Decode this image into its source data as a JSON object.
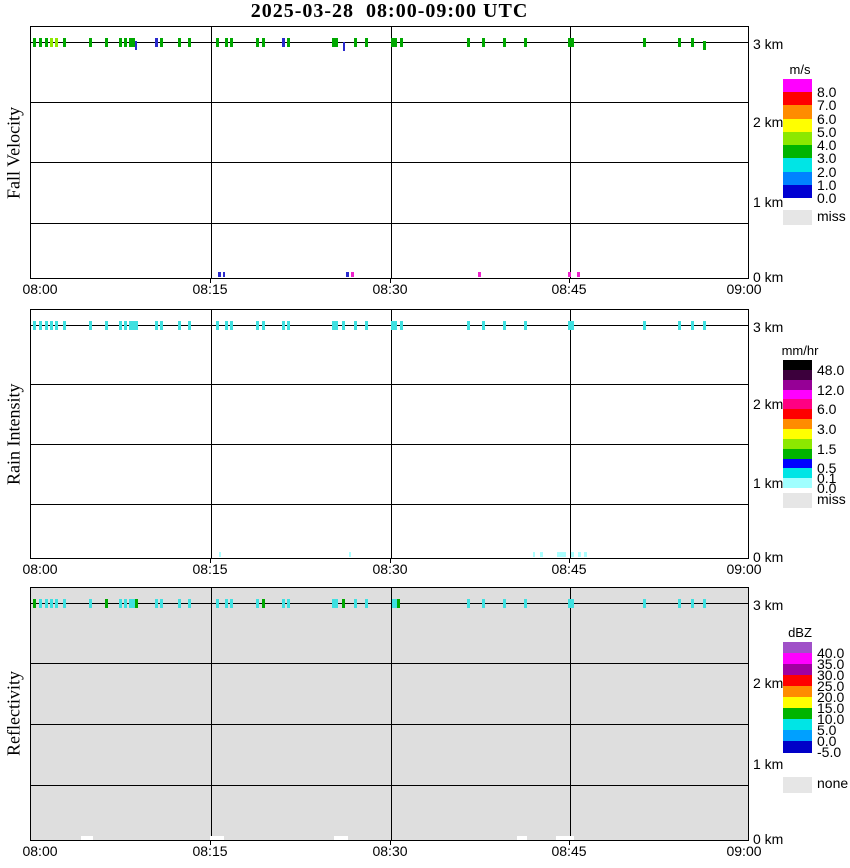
{
  "title": "2025-03-28  08:00-09:00 UTC",
  "chart_data": {
    "type": "heatmap",
    "title": "2025-03-28  08:00-09:00 UTC",
    "x_ticks": [
      "08:00",
      "08:15",
      "08:30",
      "08:45",
      "09:00"
    ],
    "x_range_minutes": [
      0,
      60
    ],
    "y_tick_labels": [
      "3 km",
      "2 km",
      "1 km",
      "0 km"
    ],
    "y_range_km": [
      0,
      3.2
    ],
    "grid": "on",
    "legend_position": "right",
    "mark_format": [
      "minutes_after_0800",
      "color_key_or_null_for_default",
      "width_px",
      "y_offset_px"
    ],
    "colors": {
      "green": "#00A800",
      "lime": "#90E800",
      "blue": "#2A2ACC",
      "cyan": "#3FE0E0",
      "magenta": "#EE22CC",
      "pale": "#AAFFFF",
      "white": "#FFFFFF"
    },
    "panels": [
      {
        "name": "Fall Velocity",
        "units": "m/s",
        "background": "#FFFFFF",
        "default_mark_color": "green",
        "colorbar_labels": [
          "8.0",
          "7.0",
          "6.0",
          "5.0",
          "4.0",
          "3.0",
          "2.0",
          "1.0",
          "0.0"
        ],
        "colorbar_colors": [
          "#FF00FF",
          "#FF0000",
          "#FF8C00",
          "#FFFF00",
          "#8CE800",
          "#00B400",
          "#00E5E5",
          "#0082FF",
          "#0000D2"
        ],
        "missing_label": "miss",
        "missing_color": "#E6E6E6",
        "echo_marks_3km": [
          [
            0.3
          ],
          [
            0.8
          ],
          [
            1.3
          ],
          [
            1.7,
            "lime"
          ],
          [
            2.1,
            "lime"
          ],
          [
            2.8
          ],
          [
            5.0
          ],
          [
            6.3
          ],
          [
            7.5
          ],
          [
            7.9
          ],
          [
            8.4,
            null,
            6
          ],
          [
            8.8,
            "blue",
            2,
            3
          ],
          [
            10.5,
            "blue"
          ],
          [
            10.9
          ],
          [
            12.4
          ],
          [
            13.2
          ],
          [
            15.6
          ],
          [
            16.3
          ],
          [
            16.7
          ],
          [
            18.9
          ],
          [
            19.4
          ],
          [
            21.1,
            "blue"
          ],
          [
            21.5
          ],
          [
            25.4,
            null,
            6
          ],
          [
            26.1,
            "blue",
            2,
            4
          ],
          [
            27.1
          ],
          [
            28.0
          ],
          [
            30.3,
            null,
            6
          ],
          [
            30.9
          ],
          [
            36.5
          ],
          [
            37.8
          ],
          [
            39.5
          ],
          [
            41.3
          ],
          [
            44.9
          ],
          [
            45.2
          ],
          [
            51.2
          ],
          [
            54.1
          ],
          [
            55.2
          ],
          [
            56.2,
            null,
            3,
            3
          ]
        ],
        "surface_marks_0km": [
          [
            15.7,
            "blue"
          ],
          [
            16.1,
            "blue",
            2
          ],
          [
            26.4,
            "blue"
          ],
          [
            26.8,
            "magenta"
          ],
          [
            37.4,
            "magenta"
          ],
          [
            44.9,
            "magenta"
          ],
          [
            45.7,
            "magenta"
          ]
        ]
      },
      {
        "name": "Rain Intensity",
        "units": "mm/hr",
        "background": "#FFFFFF",
        "default_mark_color": "cyan",
        "colorbar_labels": [
          "48.0",
          "12.0",
          "6.0",
          "3.0",
          "1.5",
          "0.5",
          "0.1",
          "0.0"
        ],
        "colorbar_colors": [
          "#000000",
          "#3C003C",
          "#960096",
          "#FF00FF",
          "#FF0082",
          "#FF0000",
          "#FF8C00",
          "#FFFF00",
          "#8CE800",
          "#00B400",
          "#0000FF",
          "#00E5E5",
          "#A0FFFF"
        ],
        "missing_label": "miss",
        "missing_color": "#E6E6E6",
        "echo_marks_3km": [
          [
            0.3
          ],
          [
            0.8
          ],
          [
            1.3
          ],
          [
            1.7
          ],
          [
            2.1
          ],
          [
            2.8
          ],
          [
            5.0
          ],
          [
            6.3
          ],
          [
            7.5
          ],
          [
            7.9
          ],
          [
            8.4,
            null,
            6
          ],
          [
            8.8
          ],
          [
            10.5
          ],
          [
            10.9
          ],
          [
            12.4
          ],
          [
            13.2
          ],
          [
            15.6
          ],
          [
            16.3
          ],
          [
            16.7
          ],
          [
            18.9
          ],
          [
            19.4
          ],
          [
            21.1
          ],
          [
            21.5
          ],
          [
            25.4,
            null,
            6
          ],
          [
            26.1
          ],
          [
            27.1
          ],
          [
            28.0
          ],
          [
            30.3,
            null,
            6
          ],
          [
            30.9
          ],
          [
            36.5
          ],
          [
            37.8
          ],
          [
            39.5
          ],
          [
            41.3
          ],
          [
            44.9
          ],
          [
            45.2
          ],
          [
            51.2
          ],
          [
            54.1
          ],
          [
            55.2
          ],
          [
            56.2
          ]
        ],
        "surface_marks_0km": [
          [
            15.8,
            "pale",
            2
          ],
          [
            26.6,
            "pale",
            2
          ],
          [
            42.0,
            "pale",
            2
          ],
          [
            42.6,
            "pale"
          ],
          [
            44.3,
            "pale",
            9
          ],
          [
            45.2,
            "pale",
            3
          ],
          [
            45.8,
            "pale",
            3
          ],
          [
            46.3,
            "pale",
            3
          ]
        ]
      },
      {
        "name": "Reflectivity",
        "units": "dBZ",
        "background": "#DEDEDE",
        "default_mark_color": "cyan",
        "colorbar_labels": [
          "40.0",
          "35.0",
          "30.0",
          "25.0",
          "20.0",
          "15.0",
          "10.0",
          "5.0",
          "0.0",
          "-5.0"
        ],
        "colorbar_colors": [
          "#A050C8",
          "#FF00FF",
          "#A000A0",
          "#FF0000",
          "#FF8C00",
          "#FFFF00",
          "#00B400",
          "#00E5E5",
          "#00A0FF",
          "#0000C8"
        ],
        "missing_label": "none",
        "missing_color": "#E6E6E6",
        "echo_marks_3km": [
          [
            0.3,
            "green"
          ],
          [
            0.8
          ],
          [
            1.3
          ],
          [
            1.7
          ],
          [
            2.1
          ],
          [
            2.8
          ],
          [
            5.0
          ],
          [
            6.3,
            "green"
          ],
          [
            7.5
          ],
          [
            7.9
          ],
          [
            8.4,
            null,
            6
          ],
          [
            8.8,
            "green"
          ],
          [
            10.5
          ],
          [
            10.9
          ],
          [
            12.4
          ],
          [
            13.2
          ],
          [
            15.6
          ],
          [
            16.3
          ],
          [
            16.7
          ],
          [
            18.9
          ],
          [
            19.4,
            "green"
          ],
          [
            21.1
          ],
          [
            21.5
          ],
          [
            25.4,
            null,
            6
          ],
          [
            26.1,
            "green"
          ],
          [
            27.1
          ],
          [
            28.0
          ],
          [
            30.3,
            null,
            5
          ],
          [
            30.7,
            "green"
          ],
          [
            36.5
          ],
          [
            37.8
          ],
          [
            39.5
          ],
          [
            41.3
          ],
          [
            44.9
          ],
          [
            45.2
          ],
          [
            51.2
          ],
          [
            54.1
          ],
          [
            55.2
          ],
          [
            56.2
          ]
        ],
        "surface_marks_0km": [
          [
            4.7,
            "white",
            12
          ],
          [
            15.5,
            "white",
            14
          ],
          [
            25.9,
            "white",
            14
          ],
          [
            41.0,
            "white",
            10
          ],
          [
            44.6,
            "white",
            18
          ]
        ]
      }
    ]
  }
}
